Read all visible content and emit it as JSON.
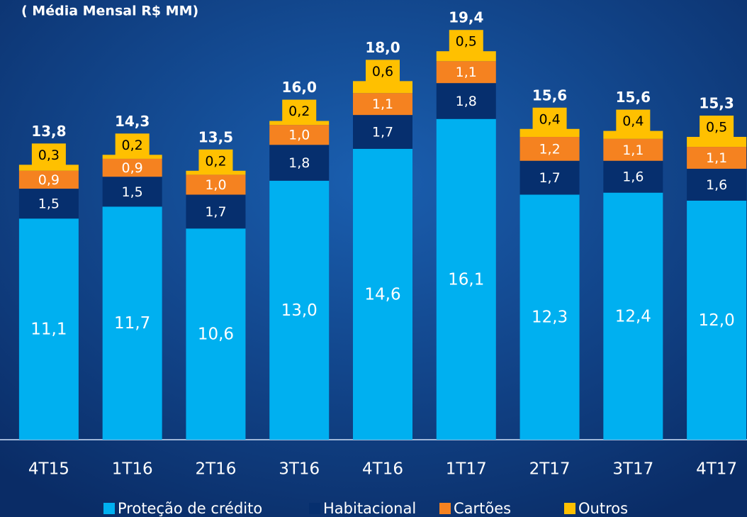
{
  "chart_data": {
    "type": "stacked_bar",
    "title": "( Média Mensal R$ MM)",
    "categories": [
      "4T15",
      "1T16",
      "2T16",
      "3T16",
      "4T16",
      "1T17",
      "2T17",
      "3T17",
      "4T17"
    ],
    "series": [
      {
        "name": "Proteção de crédito",
        "color": "#00b0f0",
        "values": [
          11.1,
          11.7,
          10.6,
          13.0,
          14.6,
          16.1,
          12.3,
          12.4,
          12.0
        ],
        "value_labels": [
          "11,1",
          "11,7",
          "10,6",
          "13,0",
          "14,6",
          "16,1",
          "12,3",
          "12,4",
          "12,0"
        ]
      },
      {
        "name": "Habitacional",
        "color": "#062f6e",
        "values": [
          1.5,
          1.5,
          1.7,
          1.8,
          1.7,
          1.8,
          1.7,
          1.6,
          1.6
        ],
        "value_labels": [
          "1,5",
          "1,5",
          "1,7",
          "1,8",
          "1,7",
          "1,8",
          "1,7",
          "1,6",
          "1,6"
        ]
      },
      {
        "name": "Cartões",
        "color": "#f58220",
        "values": [
          0.9,
          0.9,
          1.0,
          1.0,
          1.1,
          1.1,
          1.2,
          1.1,
          1.1
        ],
        "value_labels": [
          "0,9",
          "0,9",
          "1,0",
          "1,0",
          "1,1",
          "1,1",
          "1,2",
          "1,1",
          "1,1"
        ]
      },
      {
        "name": "Outros",
        "color": "#ffc000",
        "values": [
          0.3,
          0.2,
          0.2,
          0.2,
          0.6,
          0.5,
          0.4,
          0.4,
          0.5
        ],
        "value_labels": [
          "0,3",
          "0,2",
          "0,2",
          "0,2",
          "0,6",
          "0,5",
          "0,4",
          "0,4",
          "0,5"
        ]
      }
    ],
    "totals": [
      13.8,
      14.3,
      13.5,
      16.0,
      18.0,
      19.4,
      15.6,
      15.6,
      15.3
    ],
    "total_labels": [
      "13,8",
      "14,3",
      "13,5",
      "16,0",
      "18,0",
      "19,4",
      "15,6",
      "15,6",
      "15,3"
    ],
    "ylim": [
      0,
      22
    ]
  }
}
